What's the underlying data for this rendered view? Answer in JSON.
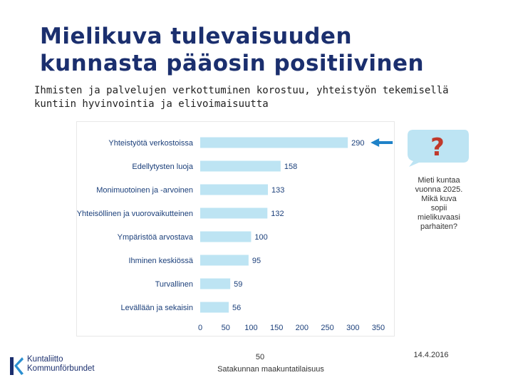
{
  "title": {
    "line1": "Mielikuva tulevaisuuden",
    "line2": "kunnasta pääosin positiivinen"
  },
  "subtitle": {
    "line1": "Ihmisten ja palvelujen verkottuminen korostuu, yhteistyön tekemisellä",
    "line2": "kuntiin hyvinvointia ja elivoimaisuutta"
  },
  "chart_data": {
    "type": "bar",
    "orientation": "horizontal",
    "categories": [
      "Yhteistyötä verkostoissa",
      "Edellytysten luoja",
      "Monimuotoinen ja -arvoinen",
      "Yhteisöllinen ja vuorovaikutteinen",
      "Ympäristöä arvostava",
      "Ihminen keskiössä",
      "Turvallinen",
      "Levällään ja sekaisin"
    ],
    "values": [
      290,
      158,
      133,
      132,
      100,
      95,
      59,
      56
    ],
    "xlim": [
      0,
      350
    ],
    "xticks": [
      "0",
      "50",
      "100",
      "150",
      "200",
      "250",
      "300",
      "350"
    ],
    "bar_color": "#bde4f3",
    "highlight_arrow_on": "Yhteistyötä verkostoissa",
    "arrow_color": "#1f82c8",
    "label_color": "#1b3f7a"
  },
  "bubble": {
    "glyph": "?",
    "bubble_color": "#bde4f3",
    "glyph_color": "#c0392b"
  },
  "side_note": {
    "lines": [
      "Mieti kuntaa",
      "vuonna 2025.",
      "Mikä kuva",
      "sopii",
      "mielikuvaasi",
      "parhaiten?"
    ]
  },
  "footer": {
    "page_number": "50",
    "source": "Satakunnan maakuntatilaisuus",
    "date": "14.4.2016"
  },
  "logo": {
    "line1": "Kuntaliitto",
    "line2": "Kommunförbundet",
    "icon": "kuntaliitto-k-logo-icon"
  }
}
